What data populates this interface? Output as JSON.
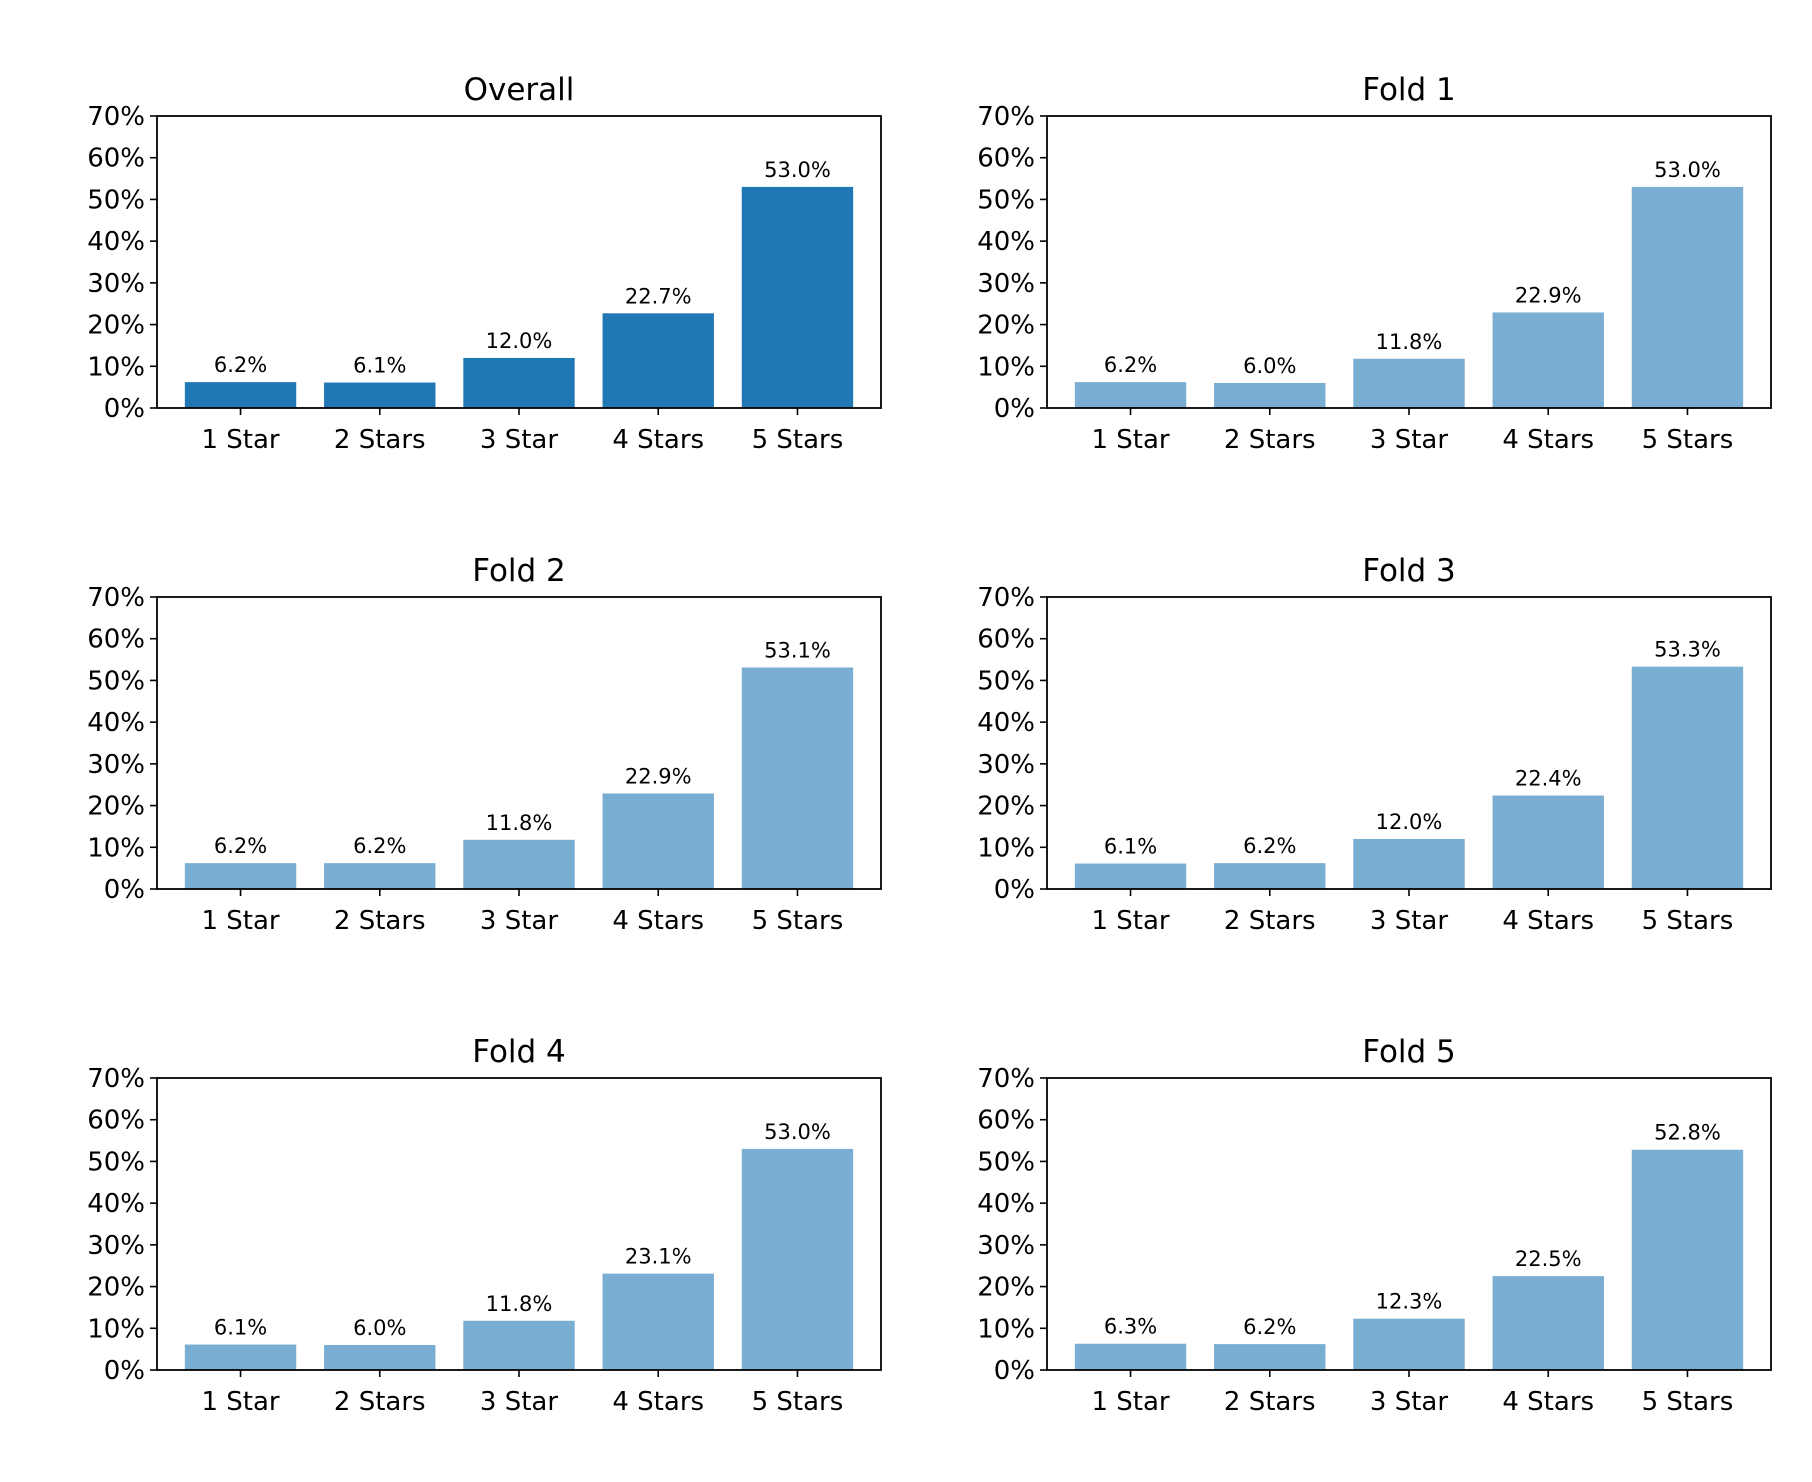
{
  "chart_data": [
    {
      "type": "bar",
      "title": "Overall",
      "categories": [
        "1 Star",
        "2 Stars",
        "3 Star",
        "4 Stars",
        "5 Stars"
      ],
      "values": [
        6.2,
        6.1,
        12.0,
        22.7,
        53.0
      ],
      "data_labels": [
        "6.2%",
        "6.1%",
        "12.0%",
        "22.7%",
        "53.0%"
      ],
      "ylim": [
        0,
        70
      ],
      "yticks": [
        "0%",
        "10%",
        "20%",
        "30%",
        "40%",
        "50%",
        "60%",
        "70%"
      ],
      "color": "#1f77b4",
      "xlabel": "",
      "ylabel": "",
      "grid": false
    },
    {
      "type": "bar",
      "title": "Fold 1",
      "categories": [
        "1 Star",
        "2 Stars",
        "3 Star",
        "4 Stars",
        "5 Stars"
      ],
      "values": [
        6.2,
        6.0,
        11.8,
        22.9,
        53.0
      ],
      "data_labels": [
        "6.2%",
        "6.0%",
        "11.8%",
        "22.9%",
        "53.0%"
      ],
      "ylim": [
        0,
        70
      ],
      "yticks": [
        "0%",
        "10%",
        "20%",
        "30%",
        "40%",
        "50%",
        "60%",
        "70%"
      ],
      "color": "#7aadd2",
      "xlabel": "",
      "ylabel": "",
      "grid": false
    },
    {
      "type": "bar",
      "title": "Fold 2",
      "categories": [
        "1 Star",
        "2 Stars",
        "3 Star",
        "4 Stars",
        "5 Stars"
      ],
      "values": [
        6.2,
        6.2,
        11.8,
        22.9,
        53.1
      ],
      "data_labels": [
        "6.2%",
        "6.2%",
        "11.8%",
        "22.9%",
        "53.1%"
      ],
      "ylim": [
        0,
        70
      ],
      "yticks": [
        "0%",
        "10%",
        "20%",
        "30%",
        "40%",
        "50%",
        "60%",
        "70%"
      ],
      "color": "#7aadd2",
      "xlabel": "",
      "ylabel": "",
      "grid": false
    },
    {
      "type": "bar",
      "title": "Fold 3",
      "categories": [
        "1 Star",
        "2 Stars",
        "3 Star",
        "4 Stars",
        "5 Stars"
      ],
      "values": [
        6.1,
        6.2,
        12.0,
        22.4,
        53.3
      ],
      "data_labels": [
        "6.1%",
        "6.2%",
        "12.0%",
        "22.4%",
        "53.3%"
      ],
      "ylim": [
        0,
        70
      ],
      "yticks": [
        "0%",
        "10%",
        "20%",
        "30%",
        "40%",
        "50%",
        "60%",
        "70%"
      ],
      "color": "#7aadd2",
      "xlabel": "",
      "ylabel": "",
      "grid": false
    },
    {
      "type": "bar",
      "title": "Fold 4",
      "categories": [
        "1 Star",
        "2 Stars",
        "3 Star",
        "4 Stars",
        "5 Stars"
      ],
      "values": [
        6.1,
        6.0,
        11.8,
        23.1,
        53.0
      ],
      "data_labels": [
        "6.1%",
        "6.0%",
        "11.8%",
        "23.1%",
        "53.0%"
      ],
      "ylim": [
        0,
        70
      ],
      "yticks": [
        "0%",
        "10%",
        "20%",
        "30%",
        "40%",
        "50%",
        "60%",
        "70%"
      ],
      "color": "#7aadd2",
      "xlabel": "",
      "ylabel": "",
      "grid": false
    },
    {
      "type": "bar",
      "title": "Fold 5",
      "categories": [
        "1 Star",
        "2 Stars",
        "3 Star",
        "4 Stars",
        "5 Stars"
      ],
      "values": [
        6.3,
        6.2,
        12.3,
        22.5,
        52.8
      ],
      "data_labels": [
        "6.3%",
        "6.2%",
        "12.3%",
        "22.5%",
        "52.8%"
      ],
      "ylim": [
        0,
        70
      ],
      "yticks": [
        "0%",
        "10%",
        "20%",
        "30%",
        "40%",
        "50%",
        "60%",
        "70%"
      ],
      "color": "#7aadd2",
      "xlabel": "",
      "ylabel": "",
      "grid": false
    }
  ]
}
